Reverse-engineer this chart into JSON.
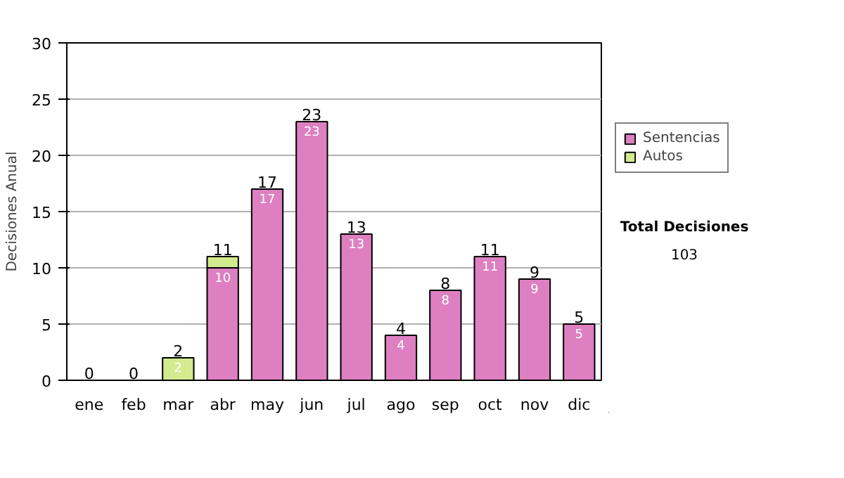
{
  "chart_data": {
    "type": "bar",
    "stacked": true,
    "categories": [
      "ene",
      "feb",
      "mar",
      "abr",
      "may",
      "jun",
      "jul",
      "ago",
      "sep",
      "oct",
      "nov",
      "dic"
    ],
    "ylabel": "Decisiones Anual",
    "series": [
      {
        "name": "Sentencias",
        "color": "#dd7fc0",
        "values": [
          0,
          0,
          0,
          10,
          17,
          23,
          13,
          4,
          8,
          11,
          9,
          5
        ],
        "value_labels": [
          null,
          null,
          null,
          "10",
          "17",
          "23",
          "13",
          "4",
          "8",
          "11",
          "9",
          "5"
        ]
      },
      {
        "name": "Autos",
        "color": "#d3ea8e",
        "values": [
          0,
          0,
          2,
          1,
          0,
          0,
          0,
          0,
          0,
          0,
          0,
          0
        ],
        "value_labels": [
          null,
          null,
          "2",
          null,
          null,
          null,
          null,
          null,
          null,
          null,
          null,
          null
        ]
      }
    ],
    "totals": [
      "0",
      "0",
      "2",
      "11",
      "17",
      "23",
      "13",
      "4",
      "8",
      "11",
      "9",
      "5"
    ],
    "ylim": [
      0,
      30
    ],
    "yticks": [
      0,
      5,
      10,
      15,
      20,
      25,
      30
    ],
    "grid": "y",
    "legend": "right",
    "annotations": [
      "Total Decisiones",
      "103"
    ]
  }
}
